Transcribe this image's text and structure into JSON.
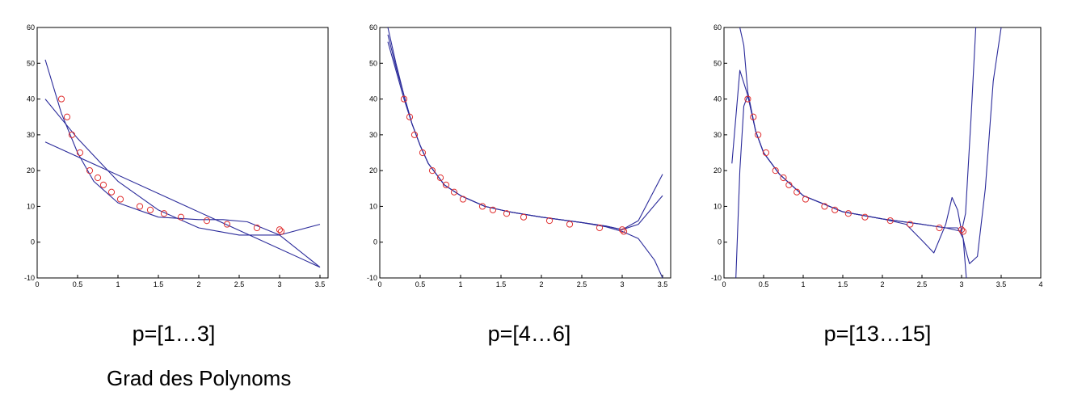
{
  "chart_data": [
    {
      "type": "line",
      "caption": "p=[1…3]",
      "xlim": [
        0,
        3.6
      ],
      "ylim": [
        -10,
        60
      ],
      "xticks": [
        0,
        0.5,
        1,
        1.5,
        2,
        2.5,
        3,
        3.5
      ],
      "xtick_labels": [
        "0",
        "0.5",
        "1",
        "1.5",
        "2",
        "2.5",
        "3",
        "3.5"
      ],
      "yticks": [
        -10,
        0,
        10,
        20,
        30,
        40,
        50,
        60
      ],
      "ytick_labels": [
        "-10",
        "0",
        "10",
        "20",
        "30",
        "40",
        "50",
        "60"
      ],
      "marker_color": "#e03030",
      "line_color": "#2a2a9a",
      "points": {
        "x": [
          0.3,
          0.37,
          0.43,
          0.53,
          0.65,
          0.75,
          0.82,
          0.92,
          1.03,
          1.27,
          1.4,
          1.57,
          1.78,
          2.1,
          2.35,
          2.72,
          3.0,
          3.02
        ],
        "y": [
          40,
          35,
          30,
          25,
          20,
          18,
          16,
          14,
          12,
          10,
          9,
          8,
          7,
          6,
          5,
          4,
          3.5,
          3
        ]
      },
      "series": [
        {
          "x": [
            0.1,
            3.5
          ],
          "y": [
            28,
            -7
          ]
        },
        {
          "x": [
            0.1,
            0.5,
            1.0,
            1.5,
            2.0,
            2.5,
            3.0,
            3.5
          ],
          "y": [
            40,
            29,
            17,
            9,
            4,
            2,
            2,
            5
          ]
        },
        {
          "x": [
            0.1,
            0.3,
            0.5,
            0.7,
            1.0,
            1.5,
            2.0,
            2.3,
            2.6,
            3.0,
            3.5
          ],
          "y": [
            51,
            36,
            25,
            17,
            11,
            7,
            6.3,
            6.3,
            5.7,
            2,
            -7
          ]
        }
      ]
    },
    {
      "type": "line",
      "caption": "p=[4…6]",
      "xlim": [
        0,
        3.6
      ],
      "ylim": [
        -10,
        60
      ],
      "xticks": [
        0,
        0.5,
        1,
        1.5,
        2,
        2.5,
        3,
        3.5
      ],
      "xtick_labels": [
        "0",
        "0.5",
        "1",
        "1.5",
        "2",
        "2.5",
        "3",
        "3.5"
      ],
      "yticks": [
        -10,
        0,
        10,
        20,
        30,
        40,
        50,
        60
      ],
      "ytick_labels": [
        "-10",
        "0",
        "10",
        "20",
        "30",
        "40",
        "50",
        "60"
      ],
      "marker_color": "#e03030",
      "line_color": "#2a2a9a",
      "points": {
        "x": [
          0.3,
          0.37,
          0.43,
          0.53,
          0.65,
          0.75,
          0.82,
          0.92,
          1.03,
          1.27,
          1.4,
          1.57,
          1.78,
          2.1,
          2.35,
          2.72,
          3.0,
          3.02
        ],
        "y": [
          40,
          35,
          30,
          25,
          20,
          18,
          16,
          14,
          12,
          10,
          9,
          8,
          7,
          6,
          5,
          4,
          3.5,
          3
        ]
      },
      "series": [
        {
          "x": [
            0.1,
            0.2,
            0.3,
            0.4,
            0.5,
            0.6,
            0.8,
            1.0,
            1.3,
            1.6,
            2.0,
            2.5,
            2.8,
            3.0,
            3.2,
            3.5
          ],
          "y": [
            60,
            50,
            41,
            33,
            27,
            22,
            16,
            13,
            10,
            8.5,
            7,
            5.5,
            4.5,
            3.5,
            6,
            19
          ]
        },
        {
          "x": [
            0.1,
            0.2,
            0.3,
            0.4,
            0.5,
            0.6,
            0.8,
            1.0,
            1.3,
            1.6,
            2.0,
            2.5,
            2.8,
            3.0,
            3.2,
            3.5
          ],
          "y": [
            58,
            49,
            41,
            33,
            27,
            22,
            16,
            13,
            10,
            8.5,
            7,
            5.5,
            4.5,
            3.5,
            5,
            13
          ]
        },
        {
          "x": [
            0.1,
            0.2,
            0.3,
            0.4,
            0.5,
            0.6,
            0.8,
            1.0,
            1.3,
            1.6,
            2.0,
            2.5,
            2.8,
            3.0,
            3.2,
            3.4,
            3.5
          ],
          "y": [
            56,
            48,
            40,
            33,
            27,
            22,
            16,
            13,
            10,
            8.5,
            7,
            5.5,
            4.3,
            3,
            1,
            -5,
            -10
          ]
        }
      ]
    },
    {
      "type": "line",
      "caption": "p=[13…15]",
      "xlim": [
        0,
        4
      ],
      "ylim": [
        -10,
        60
      ],
      "xticks": [
        0,
        0.5,
        1,
        1.5,
        2,
        2.5,
        3,
        3.5,
        4
      ],
      "xtick_labels": [
        "0",
        "0.5",
        "1",
        "1.5",
        "2",
        "2.5",
        "3",
        "3.5",
        "4"
      ],
      "yticks": [
        -10,
        0,
        10,
        20,
        30,
        40,
        50,
        60
      ],
      "ytick_labels": [
        "-10",
        "0",
        "10",
        "20",
        "30",
        "40",
        "50",
        "60"
      ],
      "marker_color": "#e03030",
      "line_color": "#2a2a9a",
      "points": {
        "x": [
          0.3,
          0.37,
          0.43,
          0.53,
          0.65,
          0.75,
          0.82,
          0.92,
          1.03,
          1.27,
          1.4,
          1.57,
          1.78,
          2.1,
          2.35,
          2.72,
          3.0,
          3.02
        ],
        "y": [
          40,
          35,
          30,
          25,
          20,
          18,
          16,
          14,
          12,
          10,
          9,
          8,
          7,
          6,
          5,
          4,
          3.5,
          3
        ]
      },
      "series": [
        {
          "x": [
            0.1,
            0.2,
            0.3,
            0.4,
            0.5,
            0.7,
            1.0,
            1.5,
            2.0,
            2.3,
            2.5,
            2.65,
            2.8,
            2.88,
            2.95,
            3.0,
            3.05,
            3.1,
            3.2,
            3.3,
            3.4,
            3.5
          ],
          "y": [
            22,
            48,
            41,
            31,
            25,
            19,
            13,
            8.5,
            6.5,
            5,
            0.5,
            -3,
            5,
            12.5,
            9,
            3,
            -2,
            -6,
            -4,
            15,
            45,
            60
          ]
        },
        {
          "x": [
            0.15,
            0.2,
            0.25,
            0.3,
            0.4,
            0.5,
            0.7,
            1.0,
            1.5,
            2.0,
            2.5,
            2.8,
            2.95,
            3.02,
            3.06
          ],
          "y": [
            -10,
            20,
            38,
            41,
            31,
            25,
            19,
            13,
            8.5,
            6.5,
            5,
            4,
            4,
            1,
            -10
          ]
        },
        {
          "x": [
            0.2,
            0.25,
            0.3,
            0.4,
            0.5,
            0.7,
            1.0,
            1.5,
            2.0,
            2.5,
            2.8,
            3.0,
            3.05,
            3.12,
            3.18
          ],
          "y": [
            60,
            55,
            42,
            31,
            25,
            19,
            13,
            8.5,
            6.5,
            5,
            4,
            3,
            8,
            35,
            60
          ]
        }
      ]
    }
  ],
  "footer": {
    "label": "Grad des Polynoms"
  }
}
